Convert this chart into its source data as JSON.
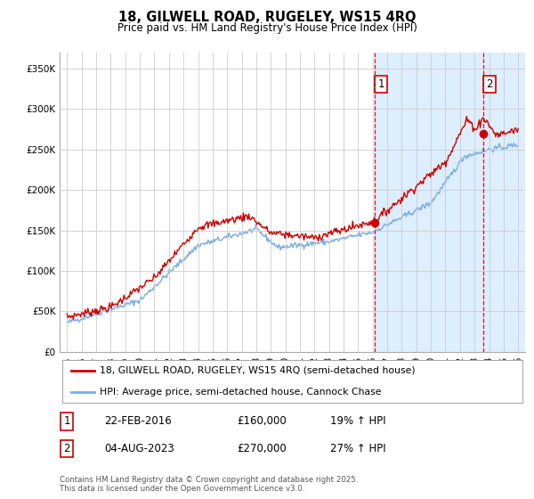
{
  "title": "18, GILWELL ROAD, RUGELEY, WS15 4RQ",
  "subtitle": "Price paid vs. HM Land Registry's House Price Index (HPI)",
  "red_label": "18, GILWELL ROAD, RUGELEY, WS15 4RQ (semi-detached house)",
  "blue_label": "HPI: Average price, semi-detached house, Cannock Chase",
  "transaction1_date": "22-FEB-2016",
  "transaction1_price": "£160,000",
  "transaction1_hpi": "19% ↑ HPI",
  "transaction2_date": "04-AUG-2023",
  "transaction2_price": "£270,000",
  "transaction2_hpi": "27% ↑ HPI",
  "copyright": "Contains HM Land Registry data © Crown copyright and database right 2025.\nThis data is licensed under the Open Government Licence v3.0.",
  "red_color": "#cc0000",
  "blue_color": "#7aade0",
  "shade_color": "#ddeeff",
  "dashed_color": "#cc0000",
  "background_color": "#ffffff",
  "grid_color": "#cccccc",
  "ylim": [
    0,
    370000
  ],
  "yticks": [
    0,
    50000,
    100000,
    150000,
    200000,
    250000,
    300000,
    350000
  ],
  "x_start_year": 1995,
  "x_end_year": 2026
}
